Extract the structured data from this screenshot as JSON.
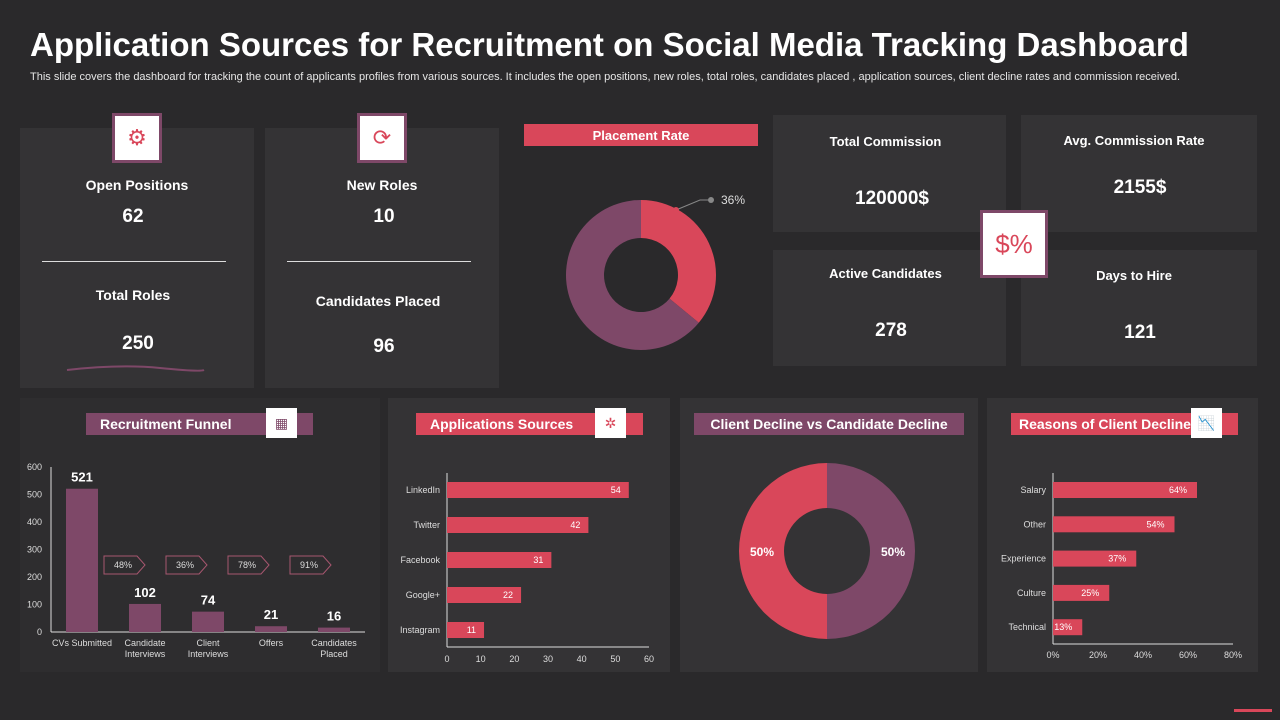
{
  "title": "Application Sources for Recruitment on Social Media Tracking Dashboard",
  "subtitle": "This slide covers the dashboard for tracking the count of  applicants profiles from various sources. It includes the open positions, new roles, total roles, candidates placed , application sources, client decline rates and commission received.",
  "colors": {
    "red": "#d9475a",
    "purple": "#7e4868",
    "background": "#2a292b",
    "panel": "#343335"
  },
  "kpis": {
    "open_positions": {
      "label": "Open Positions",
      "value": "62"
    },
    "total_roles": {
      "label": "Total Roles",
      "value": "250"
    },
    "new_roles": {
      "label": "New Roles",
      "value": "10"
    },
    "candidates_placed": {
      "label": "Candidates Placed",
      "value": "96"
    },
    "total_commission": {
      "label": "Total Commission",
      "value": "120000$"
    },
    "avg_commission_rate": {
      "label": "Avg. Commission  Rate",
      "value": "2155$"
    },
    "active_candidates": {
      "label": "Active Candidates",
      "value": "278"
    },
    "days_to_hire": {
      "label": "Days to Hire",
      "value": "121"
    }
  },
  "placement": {
    "title": "Placement Rate",
    "value": 36,
    "label": "36%"
  },
  "chart_data": [
    {
      "type": "bar",
      "title": "Recruitment Funnel",
      "categories": [
        "CVs Submitted",
        "Candidate Interviews",
        "Client Interviews",
        "Offers",
        "Candidates Placed"
      ],
      "values": [
        521,
        102,
        74,
        21,
        16
      ],
      "ylim": [
        0,
        600
      ],
      "yticks": [
        "0",
        "100",
        "200",
        "300",
        "400",
        "500",
        "600"
      ],
      "conversion_labels": [
        "48%",
        "36%",
        "78%",
        "91%"
      ]
    },
    {
      "type": "bar",
      "orientation": "horizontal",
      "title": "Applications  Sources",
      "categories": [
        "LinkedIn",
        "Twitter",
        "Facebook",
        "Google+",
        "Instagram"
      ],
      "values": [
        54,
        42,
        31,
        22,
        11
      ],
      "xlim": [
        0,
        60
      ],
      "xticks": [
        "0",
        "10",
        "20",
        "30",
        "40",
        "50",
        "60"
      ]
    },
    {
      "type": "pie",
      "title": "Client Decline vs Candidate Decline",
      "values": [
        50,
        50
      ],
      "labels": [
        "50%",
        "50%"
      ]
    },
    {
      "type": "bar",
      "orientation": "horizontal",
      "title": "Reasons  of Client Decline",
      "categories": [
        "Salary",
        "Other",
        "Experience",
        "Culture",
        "Technical"
      ],
      "values": [
        64,
        54,
        37,
        25,
        13
      ],
      "labels": [
        "64%",
        "54%",
        "37%",
        "25%",
        "13%"
      ],
      "xlim": [
        0,
        80
      ],
      "xticks": [
        "0%",
        "20%",
        "40%",
        "60%",
        "80%"
      ]
    }
  ]
}
